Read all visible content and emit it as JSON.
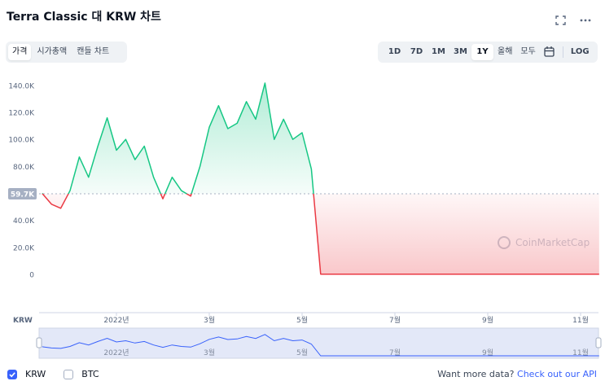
{
  "title": "Terra Classic 대 KRW 차트",
  "tabs": [
    "가격",
    "시가총액",
    "캔들 차트"
  ],
  "ranges": [
    "1D",
    "7D",
    "1M",
    "3M",
    "1Y",
    "올해",
    "모두"
  ],
  "log_button": "LOG",
  "chart_data": {
    "type": "line",
    "categories": [
      null,
      null,
      null,
      null,
      null,
      null,
      null,
      null,
      "2022년",
      null,
      null,
      null,
      null,
      null,
      null,
      null,
      null,
      null,
      "3월",
      null,
      null,
      null,
      null,
      null,
      null,
      null,
      null,
      null,
      "5월",
      null,
      null,
      null,
      null,
      null,
      null,
      null,
      null,
      null,
      "7월",
      null,
      null,
      null,
      null,
      null,
      null,
      null,
      null,
      null,
      "9월",
      null,
      null,
      null,
      null,
      null,
      null,
      null,
      null,
      null,
      "11월",
      null,
      null
    ],
    "series": [
      {
        "values": [
          60000,
          52000,
          49000,
          62000,
          87000,
          72000,
          95000,
          116000,
          92000,
          100000,
          85000,
          95000,
          72000,
          56000,
          72000,
          62000,
          58000,
          80000,
          109000,
          125000,
          108000,
          112000,
          128000,
          115000,
          141800,
          100000,
          115000,
          100000,
          105000,
          78000,
          200,
          180,
          170,
          160,
          150,
          150,
          150,
          150,
          150,
          150,
          150,
          150,
          150,
          150,
          150,
          150,
          150,
          150,
          150,
          150,
          150,
          150,
          150,
          150,
          150,
          150,
          150,
          150,
          150,
          150,
          150
        ],
        "color_up": "#16c784",
        "color_down": "#ea3943"
      }
    ],
    "reference": {
      "value": 59700,
      "label": "59.7K"
    },
    "ylim": [
      0,
      146000
    ],
    "yticks": [
      0,
      {
        "value": 20000,
        "label": "20.0K"
      },
      {
        "value": 40000,
        "label": "40.0K"
      },
      {
        "value": 80000,
        "label": "80.0K"
      },
      {
        "value": 100000,
        "label": "100.0K"
      },
      {
        "value": 120000,
        "label": "120.0K"
      },
      {
        "value": 140000,
        "label": "140.0K"
      }
    ],
    "grid": false,
    "axis_label": "KRW",
    "watermark": "CoinMarketCap"
  },
  "footer": {
    "options": [
      "KRW",
      "BTC"
    ],
    "prompt": "Want more data?",
    "link": "Check out our API"
  }
}
